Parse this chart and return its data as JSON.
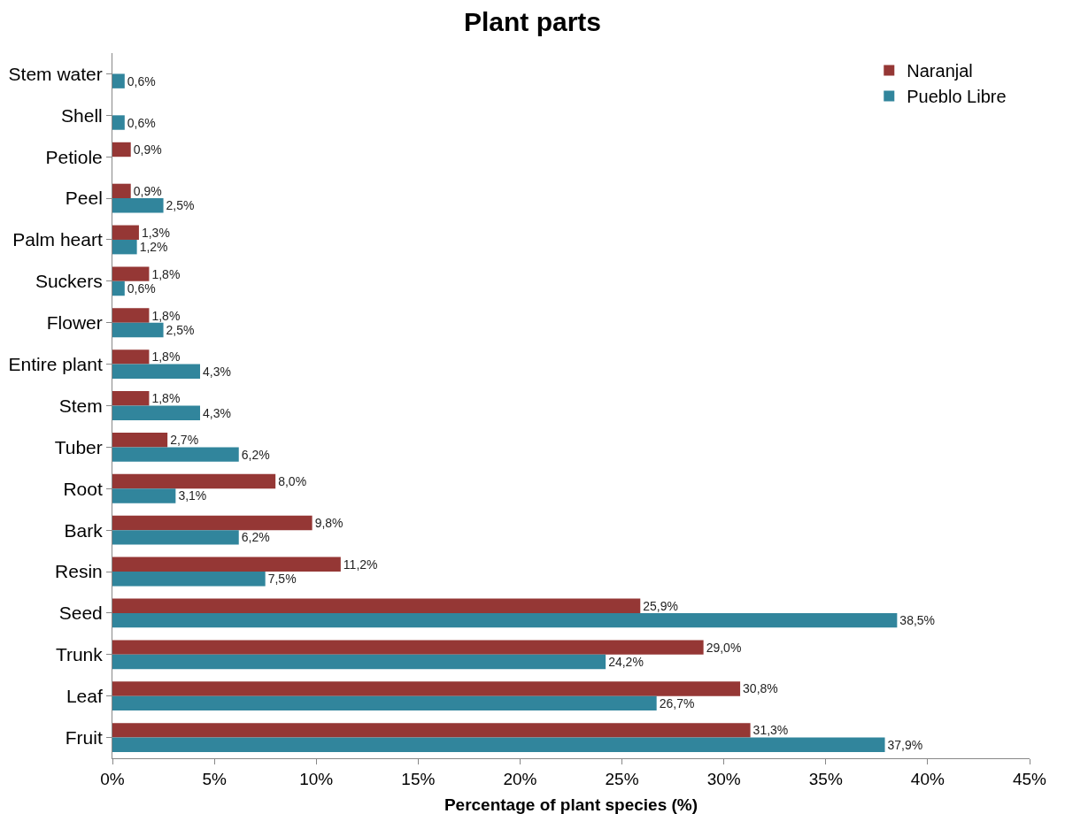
{
  "chart_data": {
    "type": "bar",
    "orientation": "horizontal",
    "title": "Plant parts",
    "xlabel": "Percentage of plant species (%)",
    "categories": [
      "Stem water",
      "Shell",
      "Petiole",
      "Peel",
      "Palm heart",
      "Suckers",
      "Flower",
      "Entire plant",
      "Stem",
      "Tuber",
      "Root",
      "Bark",
      "Resin",
      "Seed",
      "Trunk",
      "Leaf",
      "Fruit"
    ],
    "series": [
      {
        "name": "Naranjal",
        "color": "#953735",
        "values": [
          null,
          null,
          0.9,
          0.9,
          1.3,
          1.8,
          1.8,
          1.8,
          1.8,
          2.7,
          8.0,
          9.8,
          11.2,
          25.9,
          29.0,
          30.8,
          31.3
        ],
        "value_labels": [
          null,
          null,
          "0,9%",
          "0,9%",
          "1,3%",
          "1,8%",
          "1,8%",
          "1,8%",
          "1,8%",
          "2,7%",
          "8,0%",
          "9,8%",
          "11,2%",
          "25,9%",
          "29,0%",
          "30,8%",
          "31,3%"
        ]
      },
      {
        "name": "Pueblo Libre",
        "color": "#31859c",
        "values": [
          0.6,
          0.6,
          null,
          2.5,
          1.2,
          0.6,
          2.5,
          4.3,
          4.3,
          6.2,
          3.1,
          6.2,
          7.5,
          38.5,
          24.2,
          26.7,
          37.9
        ],
        "value_labels": [
          "0,6%",
          "0,6%",
          null,
          "2,5%",
          "1,2%",
          "0,6%",
          "2,5%",
          "4,3%",
          "4,3%",
          "6,2%",
          "3,1%",
          "6,2%",
          "7,5%",
          "38,5%",
          "24,2%",
          "26,7%",
          "37,9%"
        ]
      }
    ],
    "xlim": [
      0,
      45
    ],
    "xticks": [
      {
        "value": 0,
        "label": "0%"
      },
      {
        "value": 5,
        "label": "5%"
      },
      {
        "value": 10,
        "label": "10%"
      },
      {
        "value": 15,
        "label": "15%"
      },
      {
        "value": 20,
        "label": "20%"
      },
      {
        "value": 25,
        "label": "25%"
      },
      {
        "value": 30,
        "label": "30%"
      },
      {
        "value": 35,
        "label": "35%"
      },
      {
        "value": 40,
        "label": "40%"
      },
      {
        "value": 45,
        "label": "45%"
      }
    ],
    "grid": false,
    "legend": "top right"
  }
}
